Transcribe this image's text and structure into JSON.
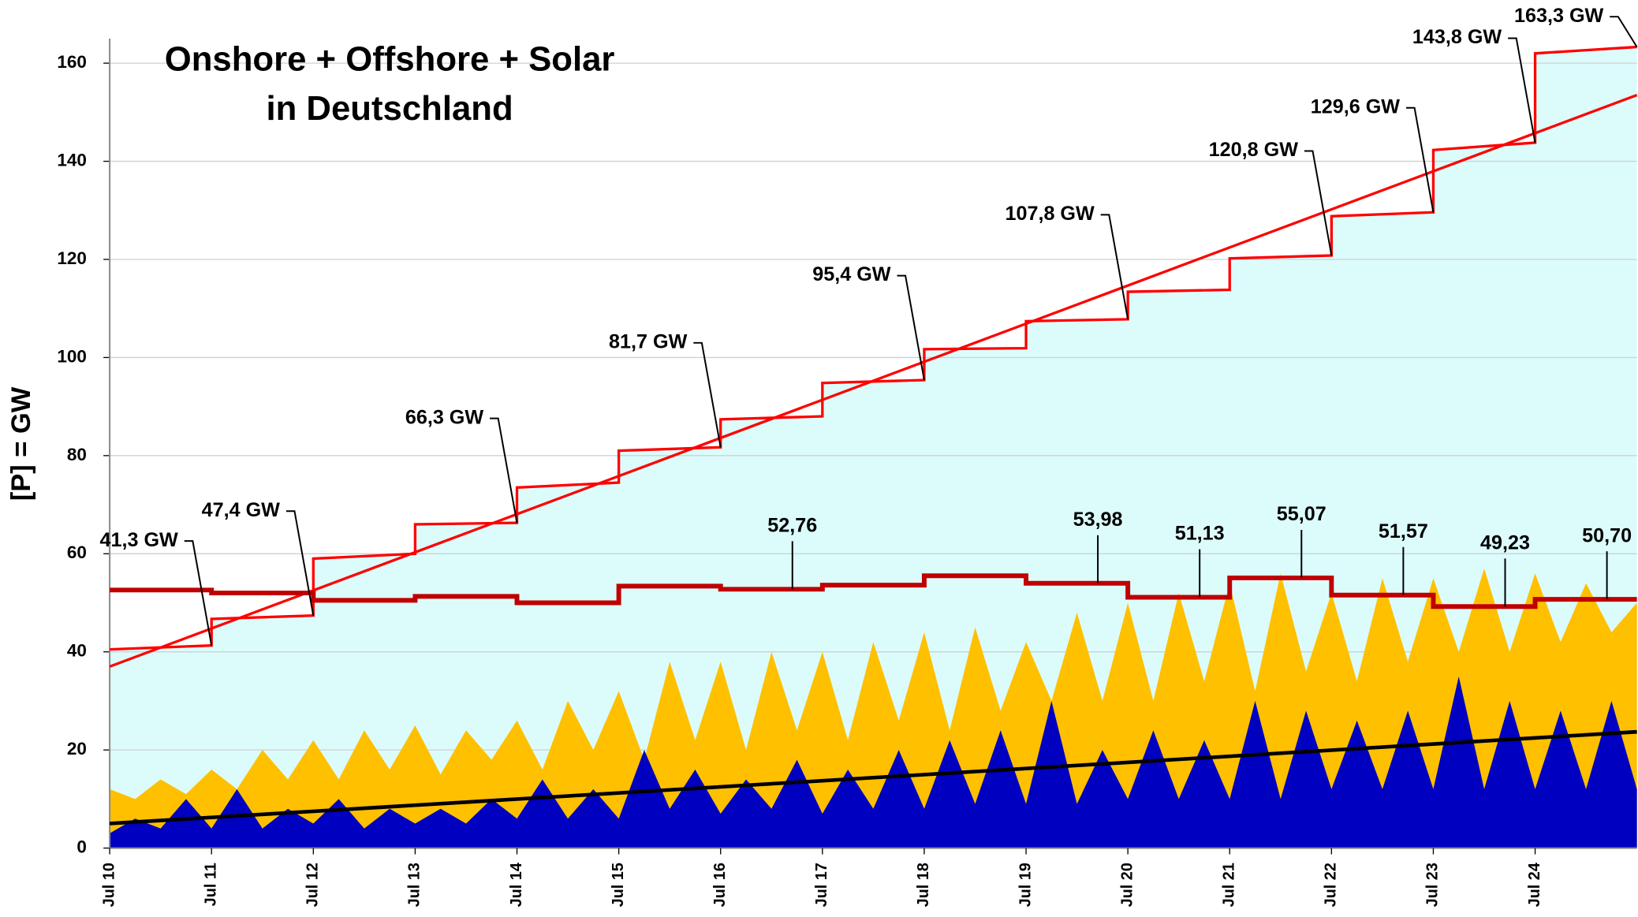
{
  "chart_data": {
    "type": "line",
    "title": "Onshore + Offshore + Solar",
    "subtitle": "in Deutschland",
    "y_label": "[P]  =  GW",
    "xlim": [
      2010.5,
      2025.5
    ],
    "xticks": [
      {
        "value": 2010.5,
        "label": "Jul 10"
      },
      {
        "value": 2011.5,
        "label": "Jul 11"
      },
      {
        "value": 2012.5,
        "label": "Jul 12"
      },
      {
        "value": 2013.5,
        "label": "Jul 13"
      },
      {
        "value": 2014.5,
        "label": "Jul 14"
      },
      {
        "value": 2015.5,
        "label": "Jul 15"
      },
      {
        "value": 2016.5,
        "label": "Jul 16"
      },
      {
        "value": 2017.5,
        "label": "Jul 17"
      },
      {
        "value": 2018.5,
        "label": "Jul 18"
      },
      {
        "value": 2019.5,
        "label": "Jul 19"
      },
      {
        "value": 2020.5,
        "label": "Jul 20"
      },
      {
        "value": 2021.5,
        "label": "Jul 21"
      },
      {
        "value": 2022.5,
        "label": "Jul 22"
      },
      {
        "value": 2023.5,
        "label": "Jul 23"
      },
      {
        "value": 2024.5,
        "label": "Jul 24"
      }
    ],
    "ylim": [
      0,
      165
    ],
    "yticks": [
      0,
      20,
      40,
      60,
      80,
      100,
      120,
      140,
      160
    ],
    "grid": true,
    "series": [
      {
        "color": "#ff0000",
        "fill": "#dcfcfc",
        "x": [
          2010.5,
          2011.5,
          2011.5,
          2012.5,
          2012.5,
          2013.5,
          2013.5,
          2014.5,
          2014.5,
          2015.5,
          2015.5,
          2016.5,
          2016.5,
          2017.5,
          2017.5,
          2018.5,
          2018.5,
          2019.5,
          2019.5,
          2020.5,
          2020.5,
          2021.5,
          2021.5,
          2022.5,
          2022.5,
          2023.5,
          2023.5,
          2024.5,
          2024.5,
          2025.5
        ],
        "values": [
          40.5,
          41.3,
          46.7,
          47.4,
          59,
          60,
          66,
          66.3,
          73.5,
          74.5,
          81,
          81.7,
          87.4,
          88,
          94.8,
          95.4,
          101.7,
          101.9,
          107.4,
          107.8,
          113.4,
          113.8,
          120.2,
          120.8,
          128.8,
          129.6,
          142.3,
          143.8,
          162,
          163.3
        ],
        "value_labels": [
          null,
          "41,3 GW",
          null,
          "47,4 GW",
          null,
          null,
          null,
          "66,3 GW",
          null,
          null,
          null,
          "81,7 GW",
          null,
          null,
          null,
          "95,4 GW",
          null,
          null,
          null,
          "107,8 GW",
          null,
          null,
          null,
          "120,8 GW",
          null,
          "129,6 GW",
          null,
          "143,8 GW",
          null,
          "163,3 GW"
        ]
      },
      {
        "color": "#ff0000",
        "x": [
          2010.5,
          2025.5
        ],
        "values": [
          37,
          153.5
        ]
      },
      {
        "color": "#c00000",
        "x": [
          2010.5,
          2011.5,
          2011.5,
          2012.5,
          2012.5,
          2013.5,
          2013.5,
          2014.5,
          2014.5,
          2015.5,
          2015.5,
          2016.5,
          2016.5,
          2017.5,
          2017.5,
          2018.5,
          2018.5,
          2019.5,
          2019.5,
          2020.5,
          2020.5,
          2021.5,
          2021.5,
          2022.5,
          2022.5,
          2023.5,
          2023.5,
          2024.5,
          2024.5,
          2025.5
        ],
        "values": [
          52.6,
          52.6,
          52,
          52,
          50.5,
          50.5,
          51.3,
          51.3,
          50,
          50,
          53.4,
          53.4,
          52.76,
          52.76,
          53.6,
          53.6,
          55.5,
          55.5,
          53.98,
          53.98,
          51.13,
          51.13,
          55.07,
          55.07,
          51.57,
          51.57,
          49.23,
          49.23,
          50.7,
          50.7
        ],
        "value_labels": [
          null,
          null,
          null,
          null,
          null,
          null,
          null,
          null,
          null,
          null,
          null,
          null,
          null,
          "52,76",
          null,
          null,
          null,
          null,
          null,
          "53,98",
          null,
          "51,13",
          null,
          "55,07",
          null,
          "51,57",
          null,
          "49,23",
          null,
          "50,70"
        ]
      },
      {
        "fill": "#ffc000",
        "x": [
          2010.5,
          2010.75,
          2011,
          2011.25,
          2011.5,
          2011.75,
          2012,
          2012.25,
          2012.5,
          2012.75,
          2013,
          2013.25,
          2013.5,
          2013.75,
          2014,
          2014.25,
          2014.5,
          2014.75,
          2015,
          2015.25,
          2015.5,
          2015.75,
          2016,
          2016.25,
          2016.5,
          2016.75,
          2017,
          2017.25,
          2017.5,
          2017.75,
          2018,
          2018.25,
          2018.5,
          2018.75,
          2019,
          2019.25,
          2019.5,
          2019.75,
          2020,
          2020.25,
          2020.5,
          2020.75,
          2021,
          2021.25,
          2021.5,
          2021.75,
          2022,
          2022.25,
          2022.5,
          2022.75,
          2023,
          2023.25,
          2023.5,
          2023.75,
          2024,
          2024.25,
          2024.5,
          2024.75,
          2025,
          2025.25,
          2025.5
        ],
        "values": [
          12,
          10,
          14,
          11,
          16,
          12,
          20,
          14,
          22,
          14,
          24,
          16,
          25,
          15,
          24,
          18,
          26,
          16,
          30,
          20,
          32,
          18,
          38,
          22,
          38,
          20,
          40,
          24,
          40,
          22,
          42,
          26,
          44,
          24,
          45,
          28,
          42,
          30,
          48,
          30,
          50,
          30,
          52,
          34,
          54,
          32,
          56,
          36,
          52,
          34,
          55,
          38,
          55,
          40,
          57,
          40,
          56,
          42,
          54,
          44,
          50
        ]
      },
      {
        "fill": "#0000c0",
        "x": [
          2010.5,
          2010.75,
          2011,
          2011.25,
          2011.5,
          2011.75,
          2012,
          2012.25,
          2012.5,
          2012.75,
          2013,
          2013.25,
          2013.5,
          2013.75,
          2014,
          2014.25,
          2014.5,
          2014.75,
          2015,
          2015.25,
          2015.5,
          2015.75,
          2016,
          2016.25,
          2016.5,
          2016.75,
          2017,
          2017.25,
          2017.5,
          2017.75,
          2018,
          2018.25,
          2018.5,
          2018.75,
          2019,
          2019.25,
          2019.5,
          2019.75,
          2020,
          2020.25,
          2020.5,
          2020.75,
          2021,
          2021.25,
          2021.5,
          2021.75,
          2022,
          2022.25,
          2022.5,
          2022.75,
          2023,
          2023.25,
          2023.5,
          2023.75,
          2024,
          2024.25,
          2024.5,
          2024.75,
          2025,
          2025.25,
          2025.5
        ],
        "values": [
          3,
          6,
          4,
          10,
          4,
          12,
          4,
          8,
          5,
          10,
          4,
          8,
          5,
          8,
          5,
          10,
          6,
          14,
          6,
          12,
          6,
          20,
          8,
          16,
          7,
          14,
          8,
          18,
          7,
          16,
          8,
          20,
          8,
          22,
          9,
          24,
          9,
          30,
          9,
          20,
          10,
          24,
          10,
          22,
          10,
          30,
          10,
          28,
          12,
          26,
          12,
          28,
          12,
          35,
          12,
          30,
          12,
          28,
          12,
          30,
          12
        ]
      },
      {
        "color": "#000000",
        "x": [
          2010.5,
          2025.5
        ],
        "values": [
          5,
          23.7
        ]
      }
    ]
  }
}
